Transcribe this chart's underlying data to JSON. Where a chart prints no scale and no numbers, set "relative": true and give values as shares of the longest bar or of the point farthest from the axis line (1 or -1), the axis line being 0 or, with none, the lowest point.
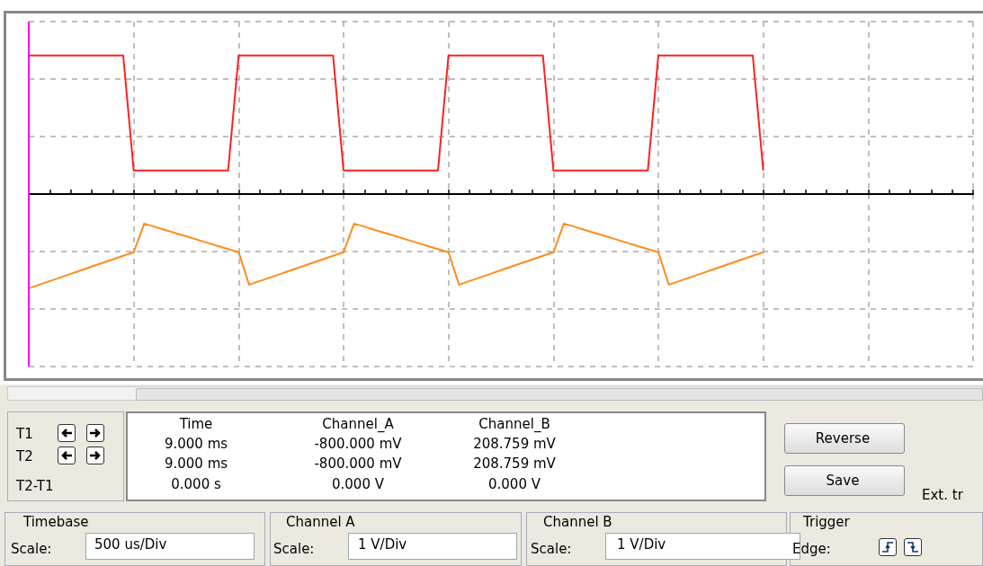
{
  "chart_data": {
    "type": "line",
    "relative": true,
    "grid": true,
    "marker": "none",
    "line_style": "solid",
    "categories": [
      null,
      null,
      null,
      null,
      null,
      null,
      null,
      null,
      null,
      null,
      null,
      null,
      null,
      null,
      null,
      null,
      null,
      null,
      null,
      null,
      null,
      null,
      null,
      null,
      null,
      null,
      null,
      null,
      null,
      null,
      null,
      null,
      null,
      null,
      null,
      null,
      null,
      null,
      null,
      null,
      null,
      null,
      null,
      null,
      null,
      null,
      null,
      null,
      null,
      null,
      null,
      null,
      null,
      null,
      null,
      null,
      null,
      null,
      null,
      null,
      null,
      null,
      null,
      null,
      null,
      null,
      null,
      null,
      null,
      null,
      null,
      null,
      null,
      null,
      null,
      null,
      null,
      null,
      null,
      null,
      null,
      null,
      null,
      null,
      null,
      null,
      null,
      null,
      null,
      null,
      null
    ],
    "series": [
      {
        "color": "#ff2020",
        "values": [
          1,
          1,
          1,
          1,
          1,
          1,
          1,
          1,
          1,
          1,
          0.17,
          0.17,
          0.17,
          0.17,
          0.17,
          0.17,
          0.17,
          0.17,
          0.17,
          0.17,
          1,
          1,
          1,
          1,
          1,
          1,
          1,
          1,
          1,
          1,
          0.17,
          0.17,
          0.17,
          0.17,
          0.17,
          0.17,
          0.17,
          0.17,
          0.17,
          0.17,
          1,
          1,
          1,
          1,
          1,
          1,
          1,
          1,
          1,
          1,
          0.17,
          0.17,
          0.17,
          0.17,
          0.17,
          0.17,
          0.17,
          0.17,
          0.17,
          0.17,
          1,
          1,
          1,
          1,
          1,
          1,
          1,
          1,
          1,
          1,
          0.17,
          null,
          null,
          null,
          null,
          null,
          null,
          null,
          null,
          null,
          null,
          null,
          null,
          null,
          null,
          null,
          null,
          null,
          null,
          null,
          null
        ]
      },
      {
        "color": "#ff8c1a",
        "values": [
          -0.68,
          -0.654,
          -0.628,
          -0.602,
          -0.576,
          -0.55,
          -0.524,
          -0.498,
          -0.472,
          -0.446,
          -0.42,
          -0.213,
          -0.236,
          -0.259,
          -0.282,
          -0.305,
          -0.328,
          -0.351,
          -0.374,
          -0.397,
          -0.42,
          -0.654,
          -0.628,
          -0.602,
          -0.576,
          -0.55,
          -0.524,
          -0.498,
          -0.472,
          -0.446,
          -0.42,
          -0.213,
          -0.236,
          -0.259,
          -0.282,
          -0.305,
          -0.328,
          -0.351,
          -0.374,
          -0.397,
          -0.42,
          -0.654,
          -0.628,
          -0.602,
          -0.576,
          -0.55,
          -0.524,
          -0.498,
          -0.472,
          -0.446,
          -0.42,
          -0.213,
          -0.236,
          -0.259,
          -0.282,
          -0.305,
          -0.328,
          -0.351,
          -0.374,
          -0.397,
          -0.42,
          -0.654,
          -0.628,
          -0.602,
          -0.576,
          -0.55,
          -0.524,
          -0.498,
          -0.472,
          -0.446,
          -0.42,
          null,
          null,
          null,
          null,
          null,
          null,
          null,
          null,
          null,
          null,
          null,
          null,
          null,
          null,
          null,
          null,
          null,
          null,
          null,
          null
        ]
      }
    ],
    "annotations": [
      "T1",
      "T2",
      "T2-T1",
      "Time",
      "9.000 ms",
      "9.000 ms",
      "0.000 s",
      "Channel_A",
      "-800.000 mV",
      "-800.000 mV",
      "0.000 V",
      "Channel_B",
      "208.759 mV",
      "208.759 mV",
      "0.000 V",
      "Reverse",
      "Save",
      "Ext. tr",
      "Timebase",
      "Scale:",
      "500 us/Div",
      "Channel A",
      "Scale:",
      "1 V/Div",
      "Channel B",
      "Scale:",
      "1 V/Div",
      "Trigger",
      "Edge:"
    ]
  }
}
